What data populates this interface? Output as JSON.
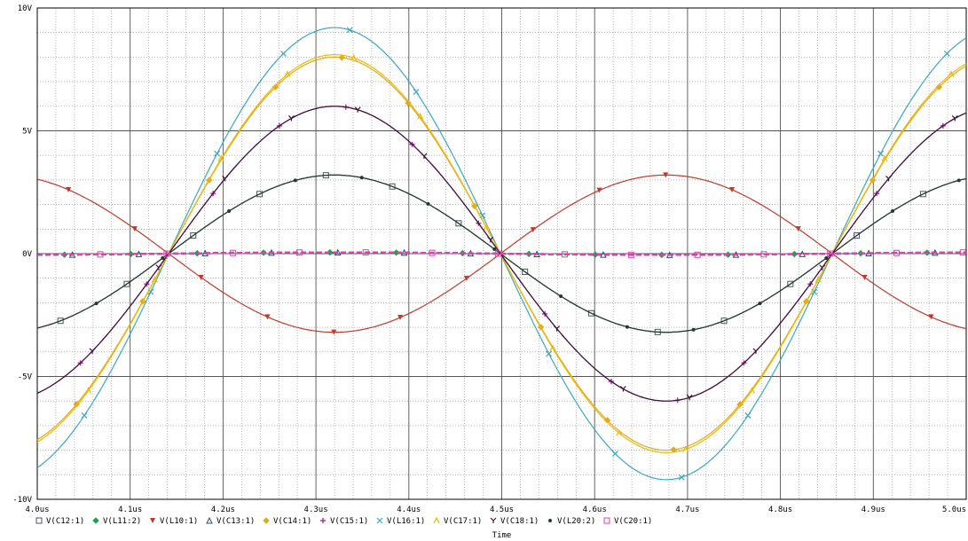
{
  "chart_data": {
    "type": "line",
    "xlabel": "Time",
    "ylabel": "",
    "xlim": [
      4.0,
      5.0
    ],
    "ylim": [
      -10,
      10
    ],
    "x_unit": "us",
    "x_ticks": [
      "4.0us",
      "4.1us",
      "4.2us",
      "4.3us",
      "4.4us",
      "4.5us",
      "4.6us",
      "4.7us",
      "4.8us",
      "4.9us",
      "5.0us"
    ],
    "y_ticks": [
      "10V",
      "5V",
      "0V",
      "-5V",
      "-10V"
    ],
    "grid": true,
    "legend_placement": "bottom",
    "period_us": 0.7143,
    "series": [
      {
        "name": "V(C12:1)",
        "color": "#4b5563",
        "marker": "square",
        "amplitude": 3.2,
        "phase_deg": 0,
        "peak_x_us": 4.32
      },
      {
        "name": "V(L11:2)",
        "color": "#22a04b",
        "marker": "diamond",
        "amplitude": 0.05,
        "phase_deg": 0,
        "peak_x_us": null
      },
      {
        "name": "V(L10:1)",
        "color": "#c0392b",
        "marker": "triangle-down",
        "amplitude": 3.2,
        "phase_deg": 180,
        "peak_x_us": 4.14
      },
      {
        "name": "V(C13:1)",
        "color": "#1f4e79",
        "marker": "triangle-up",
        "amplitude": 0.05,
        "phase_deg": 0,
        "peak_x_us": null
      },
      {
        "name": "V(C14:1)",
        "color": "#e1a91d",
        "marker": "diamond",
        "amplitude": 8.0,
        "phase_deg": 0,
        "peak_x_us": 4.32
      },
      {
        "name": "V(C15:1)",
        "color": "#b0329e",
        "marker": "plus",
        "amplitude": 6.0,
        "phase_deg": 0,
        "peak_x_us": 4.32
      },
      {
        "name": "V(L16:1)",
        "color": "#3aa6c8",
        "marker": "x",
        "amplitude": 9.2,
        "phase_deg": 0,
        "peak_x_us": 4.32
      },
      {
        "name": "V(C17:1)",
        "color": "#f0b800",
        "marker": "caret",
        "amplitude": 8.1,
        "phase_deg": 0,
        "peak_x_us": 4.32
      },
      {
        "name": "V(C18:1)",
        "color": "#3b0f3a",
        "marker": "y",
        "amplitude": 6.0,
        "phase_deg": 0,
        "peak_x_us": 4.32
      },
      {
        "name": "V(L20:2)",
        "color": "#1f3b2f",
        "marker": "dot",
        "amplitude": 3.2,
        "phase_deg": 0,
        "peak_x_us": 4.32
      },
      {
        "name": "V(C20:1)",
        "color": "#e040b0",
        "marker": "square",
        "amplitude": 0.05,
        "phase_deg": 0,
        "peak_x_us": null
      }
    ]
  }
}
